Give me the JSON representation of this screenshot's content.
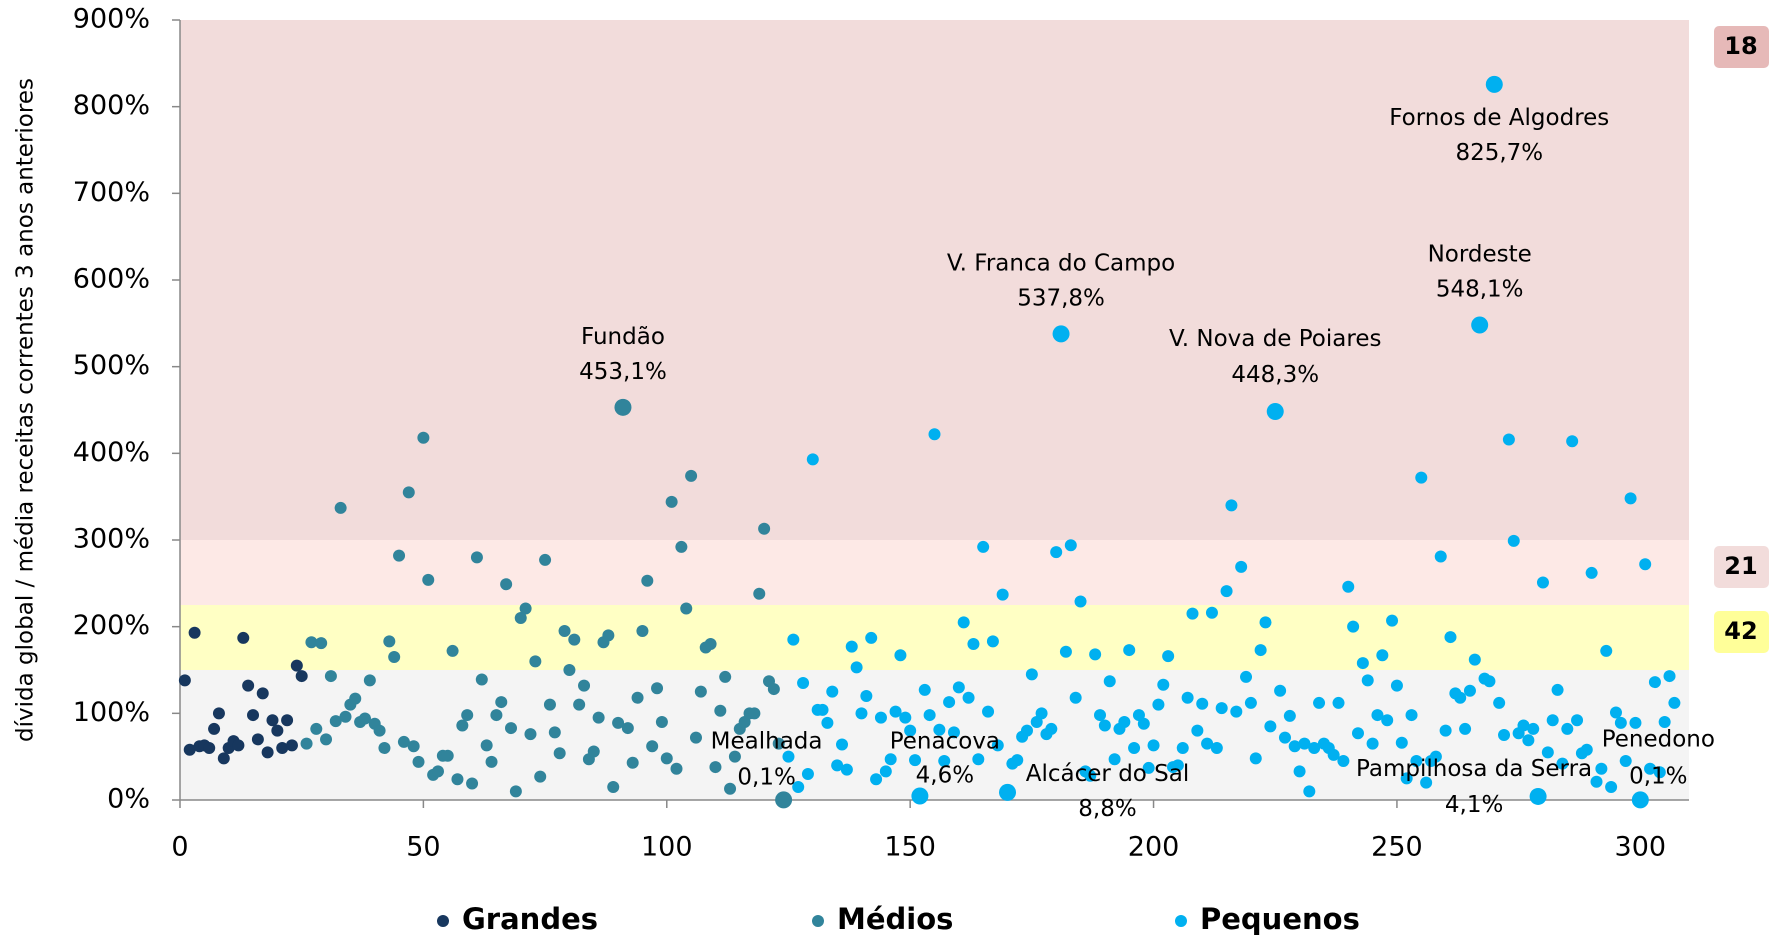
{
  "chart_data": {
    "type": "scatter",
    "ylabel": "dívida global / média receitas correntes 3 anos anteriores",
    "xlim": [
      0,
      310
    ],
    "xticks": [
      0,
      50,
      100,
      150,
      200,
      250,
      300
    ],
    "ylim": [
      0,
      900
    ],
    "yticks": [
      {
        "value": 0,
        "label": "0%"
      },
      {
        "value": 100,
        "label": "100%"
      },
      {
        "value": 200,
        "label": "200%"
      },
      {
        "value": 300,
        "label": "300%"
      },
      {
        "value": 400,
        "label": "400%"
      },
      {
        "value": 500,
        "label": "500%"
      },
      {
        "value": 600,
        "label": "600%"
      },
      {
        "value": 700,
        "label": "700%"
      },
      {
        "value": 800,
        "label": "800%"
      },
      {
        "value": 900,
        "label": "900%"
      }
    ],
    "bands": [
      {
        "from": 300,
        "to": 900,
        "color": "#f2dcdb",
        "count": 18,
        "count_color": "#e6b9b8"
      },
      {
        "from": 225,
        "to": 300,
        "color": "#fde9e6",
        "count": 21,
        "count_color": "#f2dcdb"
      },
      {
        "from": 150,
        "to": 225,
        "color": "#ffffc4",
        "count": 42,
        "count_color": "#ffff99"
      },
      {
        "from": 0,
        "to": 150,
        "color": "#f4f4f4"
      }
    ],
    "series": [
      {
        "name": "Grandes",
        "color": "#17375e",
        "x": [
          1,
          2,
          3,
          4,
          5,
          6,
          7,
          8,
          9,
          10,
          11,
          12,
          13,
          14,
          15,
          16,
          17,
          18,
          19,
          20,
          21,
          22,
          23,
          24,
          25
        ],
        "values": [
          138,
          58,
          193,
          62,
          63,
          60,
          82,
          100,
          48,
          60,
          68,
          63,
          187,
          132,
          98,
          70,
          123,
          55,
          92,
          80,
          60,
          92,
          63,
          155,
          143
        ]
      },
      {
        "name": "Médios",
        "color": "#31849b",
        "x": [
          26,
          27,
          28,
          29,
          30,
          31,
          32,
          33,
          34,
          35,
          36,
          37,
          38,
          39,
          40,
          41,
          42,
          43,
          44,
          45,
          46,
          47,
          48,
          49,
          50,
          51,
          52,
          53,
          54,
          55,
          56,
          57,
          58,
          59,
          60,
          61,
          62,
          63,
          64,
          65,
          66,
          67,
          68,
          69,
          70,
          71,
          72,
          73,
          74,
          75,
          76,
          77,
          78,
          79,
          80,
          81,
          82,
          83,
          84,
          85,
          86,
          87,
          88,
          89,
          90,
          91,
          92,
          93,
          94,
          95,
          96,
          97,
          98,
          99,
          100,
          101,
          102,
          103,
          104,
          105,
          106,
          107,
          108,
          109,
          110,
          111,
          112,
          113,
          114,
          115,
          116,
          117,
          118,
          119,
          120,
          121,
          122,
          123,
          124
        ],
        "values": [
          65,
          182,
          82,
          181,
          70,
          143,
          91,
          337,
          96,
          110,
          117,
          90,
          94,
          138,
          88,
          80,
          60,
          183,
          165,
          282,
          67,
          355,
          62,
          44,
          418,
          254,
          29,
          33,
          51,
          51,
          172,
          24,
          86,
          98,
          19,
          280,
          139,
          63,
          44,
          98,
          113,
          249,
          83,
          10,
          210,
          221,
          76,
          160,
          27,
          277,
          110,
          78,
          54,
          195,
          150,
          185,
          110,
          132,
          47,
          56,
          95,
          182,
          190,
          15,
          89,
          453.1,
          83,
          43,
          118,
          195,
          253,
          62,
          129,
          90,
          48,
          344,
          36,
          292,
          221,
          374,
          72,
          125,
          176,
          180,
          38,
          103,
          142,
          13,
          50,
          82,
          90,
          100,
          100,
          238,
          313,
          137,
          128,
          65,
          0.1
        ]
      },
      {
        "name": "Pequenos",
        "color": "#00b0f0",
        "x": [
          125,
          126,
          127,
          128,
          129,
          130,
          131,
          132,
          133,
          134,
          135,
          136,
          137,
          138,
          139,
          140,
          141,
          142,
          143,
          144,
          145,
          146,
          147,
          148,
          149,
          150,
          151,
          152,
          153,
          154,
          155,
          156,
          157,
          158,
          159,
          160,
          161,
          162,
          163,
          164,
          165,
          166,
          167,
          168,
          169,
          170,
          171,
          172,
          173,
          174,
          175,
          176,
          177,
          178,
          179,
          180,
          181,
          182,
          183,
          184,
          185,
          186,
          187,
          188,
          189,
          190,
          191,
          192,
          193,
          194,
          195,
          196,
          197,
          198,
          199,
          200,
          201,
          202,
          203,
          204,
          205,
          206,
          207,
          208,
          209,
          210,
          211,
          212,
          213,
          214,
          215,
          216,
          217,
          218,
          219,
          220,
          221,
          222,
          223,
          224,
          225,
          226,
          227,
          228,
          229,
          230,
          231,
          232,
          233,
          234,
          235,
          236,
          237,
          238,
          239,
          240,
          241,
          242,
          243,
          244,
          245,
          246,
          247,
          248,
          249,
          250,
          251,
          252,
          253,
          254,
          255,
          256,
          257,
          258,
          259,
          260,
          261,
          262,
          263,
          264,
          265,
          266,
          267,
          268,
          269,
          270,
          271,
          272,
          273,
          274,
          275,
          276,
          277,
          278,
          279,
          280,
          281,
          282,
          283,
          284,
          285,
          286,
          287,
          288,
          289,
          290,
          291,
          292,
          293,
          294,
          295,
          296,
          297,
          298,
          299,
          300,
          301,
          302,
          303,
          304,
          305,
          306,
          307
        ],
        "values": [
          50,
          185,
          15,
          135,
          30,
          393,
          104,
          104,
          89,
          125,
          40,
          64,
          35,
          177,
          153,
          100,
          120,
          187,
          24,
          95,
          33,
          47,
          102,
          167,
          95,
          80,
          46,
          4.6,
          127,
          98,
          422,
          81,
          45,
          113,
          78,
          130,
          205,
          118,
          180,
          47,
          292,
          102,
          183,
          63,
          237,
          8.8,
          42,
          46,
          73,
          80,
          145,
          90,
          100,
          76,
          82,
          286,
          537.8,
          171,
          294,
          118,
          229,
          33,
          28,
          168,
          98,
          86,
          137,
          47,
          82,
          90,
          173,
          60,
          98,
          88,
          37,
          63,
          110,
          133,
          166,
          38,
          40,
          60,
          118,
          215,
          80,
          111,
          65,
          216,
          60,
          106,
          241,
          340,
          102,
          269,
          142,
          112,
          48,
          173,
          205,
          85,
          448.3,
          126,
          72,
          97,
          62,
          33,
          65,
          10,
          60,
          112,
          65,
          60,
          52,
          112,
          45,
          246,
          200,
          77,
          158,
          138,
          65,
          98,
          167,
          92,
          207,
          132,
          66,
          25,
          98,
          45,
          372,
          20,
          45,
          50,
          281,
          80,
          188,
          123,
          118,
          82,
          126,
          162,
          548.1,
          140,
          137,
          825.7,
          112,
          75,
          416,
          299,
          77,
          86,
          69,
          82,
          4.1,
          251,
          55,
          92,
          127,
          42,
          82,
          414,
          92,
          54,
          58,
          262,
          21,
          36,
          172,
          15,
          101,
          89,
          45,
          348,
          89,
          0.1,
          272,
          36,
          136,
          32,
          90,
          143,
          112
        ]
      }
    ],
    "annotations": [
      {
        "name": "Fundão",
        "x": 91,
        "y": 453.1,
        "label": "453,1%"
      },
      {
        "name": "V. Franca do Campo",
        "x": 181,
        "y": 537.8,
        "label": "537,8%"
      },
      {
        "name": "V. Nova de Poiares",
        "x": 225,
        "y": 448.3,
        "label": "448,3%"
      },
      {
        "name": "Nordeste",
        "x": 267,
        "y": 548.1,
        "label": "548,1%"
      },
      {
        "name": "Fornos de Algodres",
        "x": 270,
        "y": 825.7,
        "label": "825,7%"
      },
      {
        "name": "Mealhada",
        "x": 124,
        "y": 0.1,
        "label": "0,1%"
      },
      {
        "name": "Penacova",
        "x": 152,
        "y": 4.6,
        "label": "4,6%"
      },
      {
        "name": "Alcácer do Sal",
        "x": 170,
        "y": 8.8,
        "label": "8,8%"
      },
      {
        "name": "Pampilhosa da Serra",
        "x": 279,
        "y": 4.1,
        "label": "4,1%"
      },
      {
        "name": "Penedono",
        "x": 300,
        "y": 0.1,
        "label": "0,1%"
      }
    ]
  }
}
